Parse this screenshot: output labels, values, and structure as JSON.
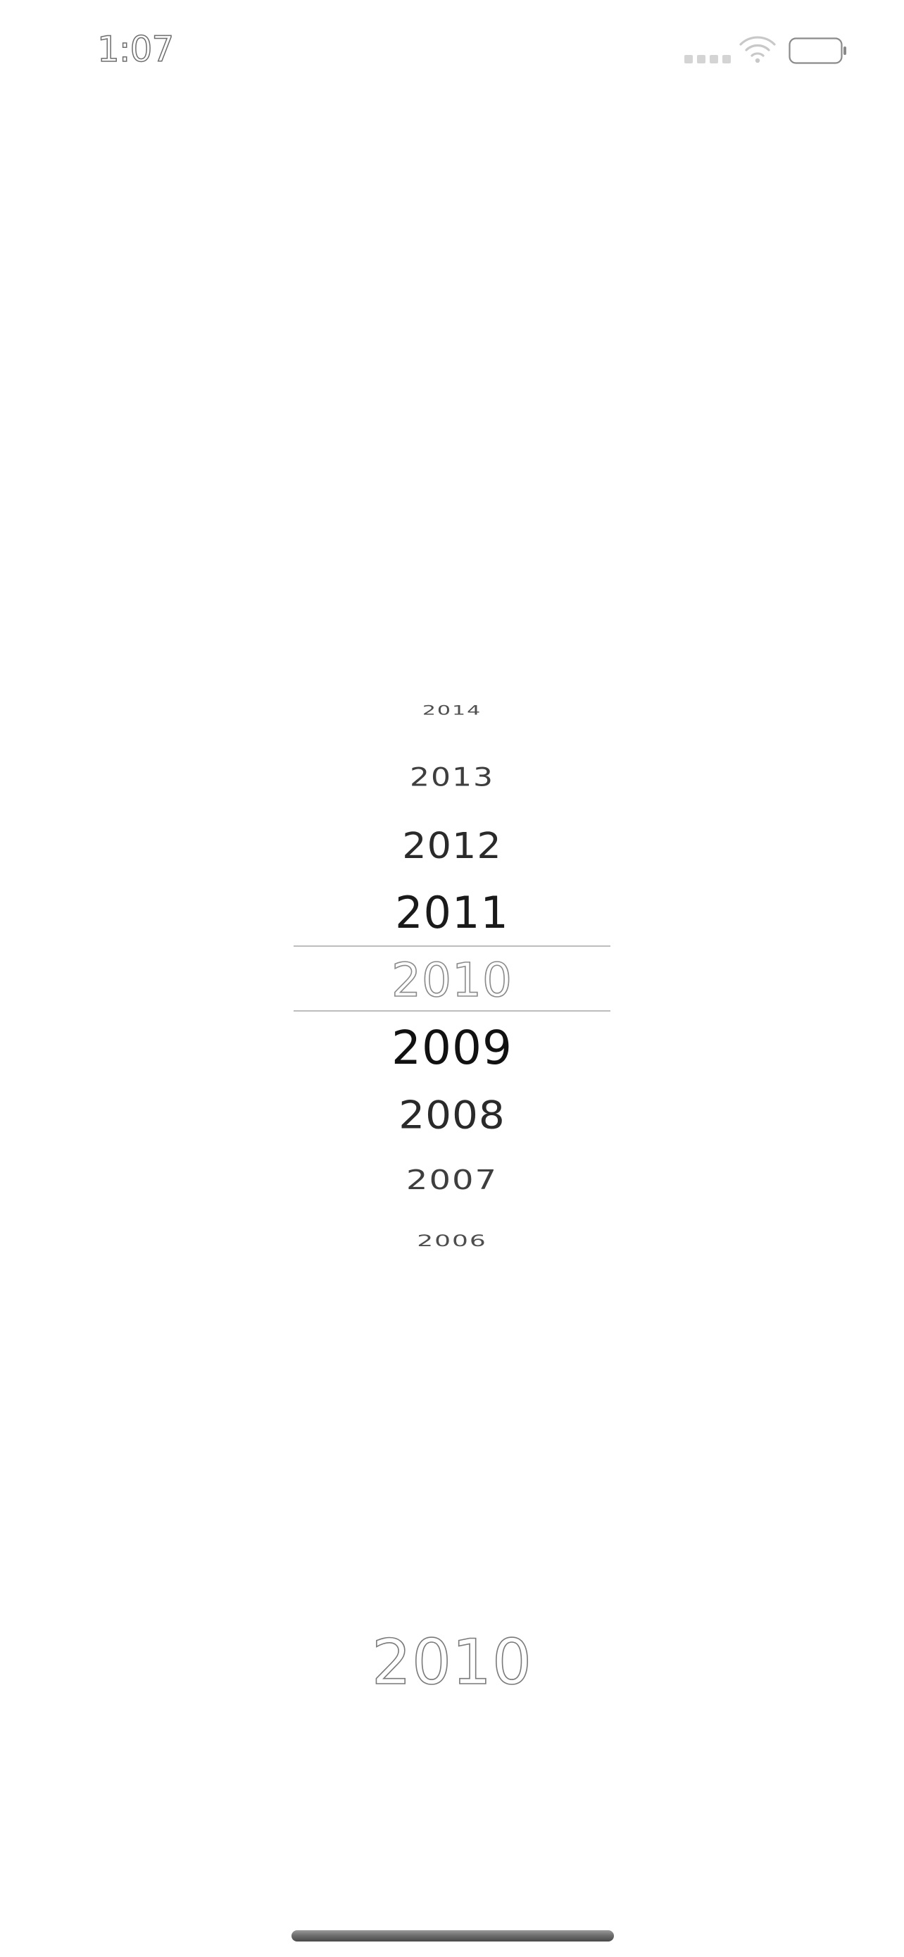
{
  "status_bar": {
    "time": "1:07",
    "wifi_icon": "wifi-icon",
    "battery_icon": "battery-icon",
    "signal_icon": "cellular-signal-dots"
  },
  "picker": {
    "items": [
      "2014",
      "2013",
      "2012",
      "2011",
      "2010",
      "2009",
      "2008",
      "2007",
      "2006"
    ],
    "selected_index": 4
  },
  "selected_value": "2010",
  "colors": {
    "text": "#111111",
    "selection_line": "#bdbdbd",
    "background": "#ffffff"
  }
}
